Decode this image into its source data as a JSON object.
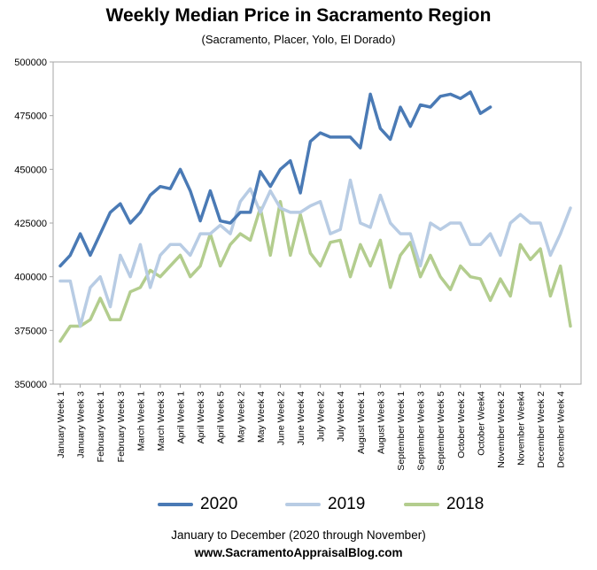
{
  "chart_data": {
    "type": "line",
    "title": "Weekly Median Price in Sacramento Region",
    "subtitle": "(Sacramento, Placer,  Yolo, El Dorado)",
    "xlabel": "January to December (2020 through November)",
    "credit": "www.SacramentoAppraisalBlog.com",
    "ylim": [
      350000,
      500000
    ],
    "yticks": [
      350000,
      375000,
      400000,
      425000,
      450000,
      475000,
      500000
    ],
    "grid": false,
    "legend_position": "bottom",
    "x_tick_labels": [
      "January Week 1",
      "January Week 3",
      "February Week 1",
      "February Week 3",
      "March Week 1",
      "March Week 3",
      "April Week 1",
      "April Week 3",
      "April Week 5",
      "May Week 2",
      "May Week 4",
      "June Week 2",
      "June Week 4",
      "July Week 2",
      "July Week 4",
      "August Week 1",
      "August Week 3",
      "September Week 1",
      "September Week 3",
      "September Week 5",
      "October Week 2",
      "October Week4",
      "November Week 2",
      "November Week4",
      "December Week 2",
      "December Week 4"
    ],
    "series": [
      {
        "name": "2020",
        "color": "#4a7ab5",
        "values": [
          405000,
          410000,
          420000,
          410000,
          420000,
          430000,
          434000,
          425000,
          430000,
          438000,
          442000,
          441000,
          450000,
          440000,
          426000,
          440000,
          426000,
          425000,
          430000,
          430000,
          449000,
          442000,
          450000,
          454000,
          439000,
          463000,
          467000,
          465000,
          465000,
          465000,
          460000,
          485000,
          469000,
          464000,
          479000,
          470000,
          480000,
          479000,
          484000,
          485000,
          483000,
          486000,
          476000,
          479000
        ]
      },
      {
        "name": "2019",
        "color": "#b8cce4",
        "values": [
          398000,
          398000,
          377000,
          395000,
          400000,
          386000,
          410000,
          400000,
          415000,
          395000,
          410000,
          415000,
          415000,
          410000,
          420000,
          420000,
          424000,
          420000,
          435000,
          441000,
          430000,
          440000,
          432000,
          430000,
          430000,
          433000,
          435000,
          420000,
          422000,
          445000,
          425000,
          423000,
          438000,
          425000,
          420000,
          420000,
          405000,
          425000,
          422000,
          425000,
          425000,
          415000,
          415000,
          420000,
          410000,
          425000,
          429000,
          425000,
          425000,
          410000,
          420000,
          432000
        ]
      },
      {
        "name": "2018",
        "color": "#b3cd8e",
        "values": [
          370000,
          377000,
          377000,
          380000,
          390000,
          380000,
          380000,
          393000,
          395000,
          403000,
          400000,
          405000,
          410000,
          400000,
          405000,
          420000,
          405000,
          415000,
          420000,
          417000,
          432000,
          410000,
          435000,
          410000,
          429000,
          411000,
          405000,
          416000,
          417000,
          400000,
          415000,
          405000,
          417000,
          395000,
          410000,
          416000,
          400000,
          410000,
          400000,
          394000,
          405000,
          400000,
          399000,
          389000,
          399000,
          391000,
          415000,
          408000,
          413000,
          391000,
          405000,
          377000
        ]
      }
    ]
  }
}
